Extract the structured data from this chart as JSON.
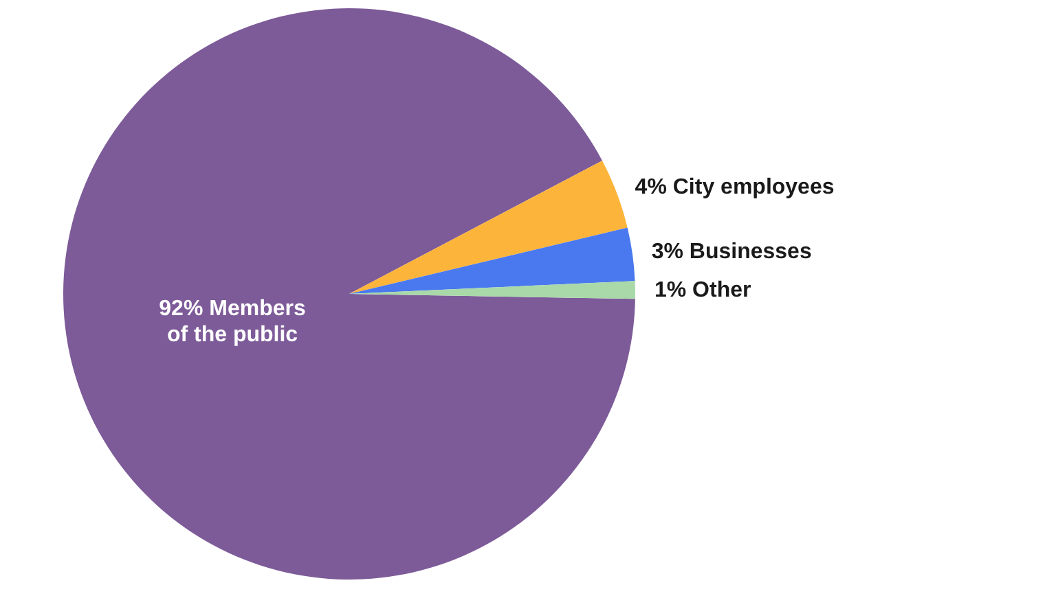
{
  "chart_data": {
    "type": "pie",
    "categories": [
      "Members of the public",
      "City employees",
      "Businesses",
      "Other"
    ],
    "values": [
      92,
      4,
      3,
      1
    ],
    "colors": [
      "#7d5b99",
      "#fcb43b",
      "#4a79ef",
      "#a9d9a9"
    ],
    "value_labels": [
      "92%",
      "4%",
      "3%",
      "1%"
    ]
  }
}
